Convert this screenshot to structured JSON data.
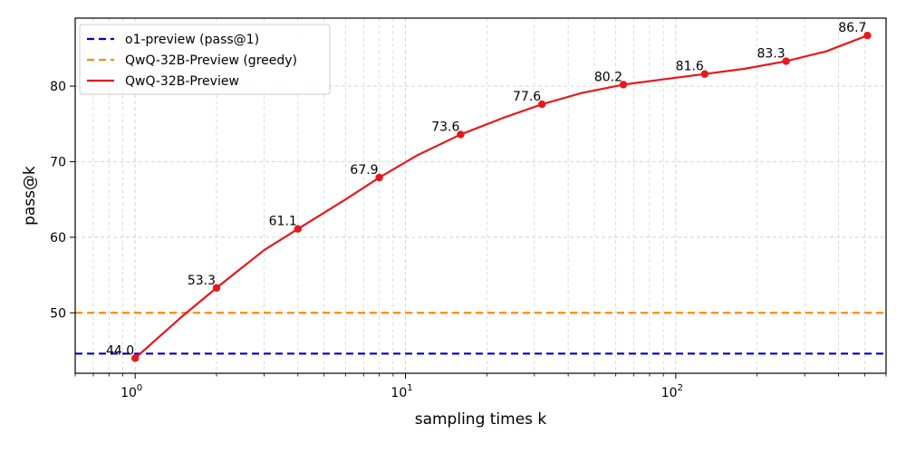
{
  "chart_data": {
    "type": "line",
    "xscale": "log",
    "xlabel": "sampling times k",
    "ylabel": "pass@k",
    "xlim": [
      0.6,
      600
    ],
    "ylim": [
      42,
      89
    ],
    "grid": true,
    "legend_position": "top-left",
    "x_ticks": [
      {
        "value": 1,
        "base": "10",
        "exp": "0"
      },
      {
        "value": 10,
        "base": "10",
        "exp": "1"
      },
      {
        "value": 100,
        "base": "10",
        "exp": "2"
      }
    ],
    "y_ticks": [
      50,
      60,
      70,
      80
    ],
    "reference_lines": [
      {
        "name": "o1-preview (pass@1)",
        "value": 44.6,
        "color": "#0000cc",
        "style": "dashed"
      },
      {
        "name": "QwQ-32B-Preview (greedy)",
        "value": 50.0,
        "color": "#ff8c00",
        "style": "dashed"
      }
    ],
    "series": [
      {
        "name": "QwQ-32B-Preview",
        "color": "#e8171c",
        "style": "solid",
        "curve": [
          {
            "x": 1,
            "y": 44.0
          },
          {
            "x": 1.5,
            "y": 49.6
          },
          {
            "x": 2,
            "y": 53.3
          },
          {
            "x": 3,
            "y": 58.3
          },
          {
            "x": 4,
            "y": 61.1
          },
          {
            "x": 6,
            "y": 65.0
          },
          {
            "x": 8,
            "y": 67.9
          },
          {
            "x": 11,
            "y": 70.8
          },
          {
            "x": 16,
            "y": 73.6
          },
          {
            "x": 23,
            "y": 75.8
          },
          {
            "x": 32,
            "y": 77.6
          },
          {
            "x": 45,
            "y": 79.1
          },
          {
            "x": 64,
            "y": 80.2
          },
          {
            "x": 90,
            "y": 80.9
          },
          {
            "x": 128,
            "y": 81.6
          },
          {
            "x": 180,
            "y": 82.3
          },
          {
            "x": 256,
            "y": 83.3
          },
          {
            "x": 360,
            "y": 84.6
          },
          {
            "x": 512,
            "y": 86.7
          }
        ],
        "points": [
          {
            "x": 1,
            "y": 44.0,
            "label": "44.0"
          },
          {
            "x": 2,
            "y": 53.3,
            "label": "53.3"
          },
          {
            "x": 4,
            "y": 61.1,
            "label": "61.1"
          },
          {
            "x": 8,
            "y": 67.9,
            "label": "67.9"
          },
          {
            "x": 16,
            "y": 73.6,
            "label": "73.6"
          },
          {
            "x": 32,
            "y": 77.6,
            "label": "77.6"
          },
          {
            "x": 64,
            "y": 80.2,
            "label": "80.2"
          },
          {
            "x": 128,
            "y": 81.6,
            "label": "81.6"
          },
          {
            "x": 256,
            "y": 83.3,
            "label": "83.3"
          },
          {
            "x": 512,
            "y": 86.7,
            "label": "86.7"
          }
        ]
      }
    ],
    "legend": [
      "o1-preview (pass@1)",
      "QwQ-32B-Preview (greedy)",
      "QwQ-32B-Preview"
    ]
  }
}
